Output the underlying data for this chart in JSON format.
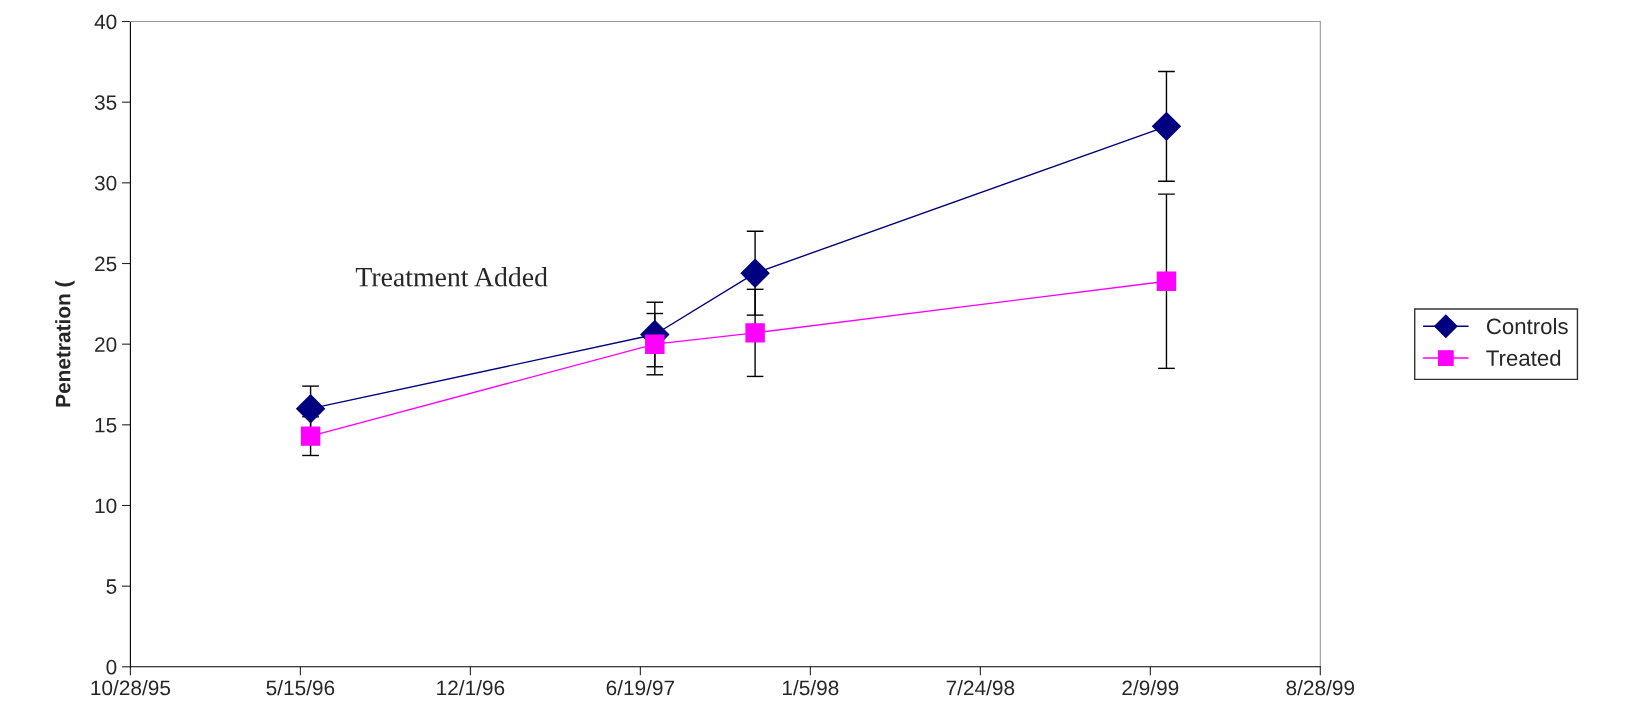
{
  "chart_data": {
    "type": "line",
    "ylabel": "Penetration (",
    "annotations": [
      "Treatment Added"
    ],
    "x": [
      "1996-05-27",
      "1997-07-06",
      "1997-11-01",
      "1999-02-28"
    ],
    "series": [
      {
        "name": "Controls",
        "color": "#000080",
        "marker": "diamond",
        "values": [
          16.0,
          20.6,
          24.4,
          33.5
        ],
        "errors": [
          1.4,
          2.0,
          2.6,
          3.4
        ]
      },
      {
        "name": "Treated",
        "color": "#ff00ff",
        "marker": "square",
        "values": [
          14.3,
          20.0,
          20.7,
          23.9
        ],
        "errors": [
          1.2,
          1.9,
          2.7,
          5.4
        ]
      }
    ],
    "xlim": [
      "1995-10-28",
      "1999-08-28"
    ],
    "xticks": [
      {
        "value": "1995-10-28",
        "label": "10/28/95"
      },
      {
        "value": "1996-05-15",
        "label": "5/15/96"
      },
      {
        "value": "1996-12-01",
        "label": "12/1/96"
      },
      {
        "value": "1997-06-19",
        "label": "6/19/97"
      },
      {
        "value": "1998-01-05",
        "label": "1/5/98"
      },
      {
        "value": "1998-07-24",
        "label": "7/24/98"
      },
      {
        "value": "1999-02-09",
        "label": "2/9/99"
      },
      {
        "value": "1999-08-28",
        "label": "8/28/99"
      }
    ],
    "ylim": [
      0,
      40
    ],
    "yticks": [
      0,
      5,
      10,
      15,
      20,
      25,
      30,
      35,
      40
    ],
    "grid": false,
    "legend": "right",
    "line_style": "solid"
  }
}
